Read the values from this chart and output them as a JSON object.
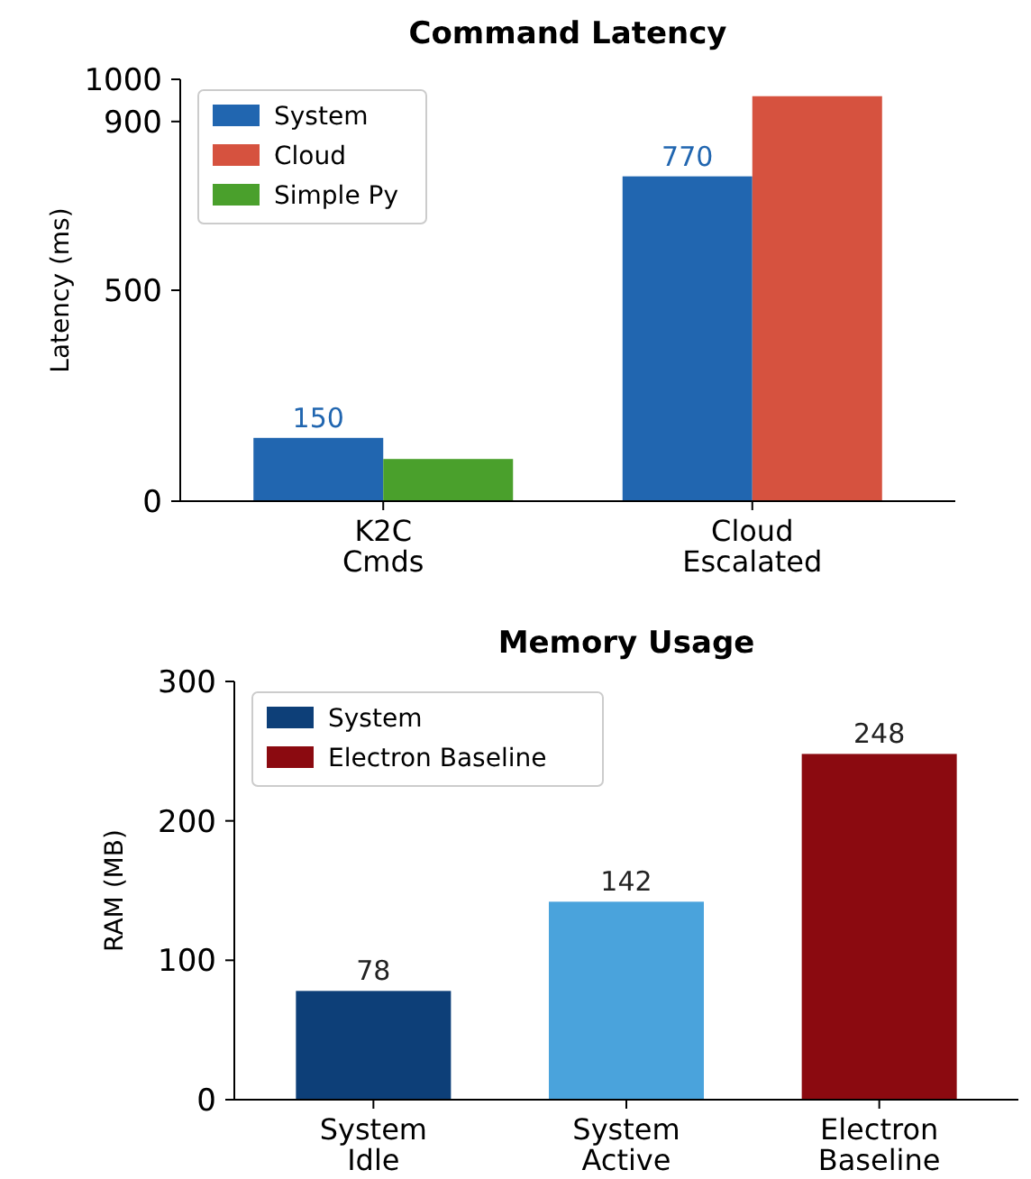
{
  "chart_data": [
    {
      "type": "bar",
      "title": "Command Latency",
      "ylabel": "Latency (ms)",
      "categories": [
        "K2C Cmds",
        "Cloud Escalated"
      ],
      "ylim": [
        0,
        1000
      ],
      "yticks": [
        0,
        500,
        900,
        1000
      ],
      "legend": "top left",
      "series": [
        {
          "name": "System",
          "color": "#2166b0",
          "values": [
            150,
            770
          ],
          "value_labels": [
            "150",
            "770"
          ]
        },
        {
          "name": "Cloud",
          "color": "#d6523f",
          "values": [
            null,
            960
          ]
        },
        {
          "name": "Simple Py",
          "color": "#4aa02c",
          "values": [
            100,
            null
          ]
        }
      ]
    },
    {
      "type": "bar",
      "title": "Memory Usage",
      "ylabel": "RAM (MB)",
      "categories": [
        "System Idle",
        "System Active",
        "Electron Baseline"
      ],
      "ylim": [
        0,
        300
      ],
      "yticks": [
        0,
        100,
        200,
        300
      ],
      "legend": "top left",
      "data_labels": true,
      "series": [
        {
          "name": "System",
          "color": "#0d3f78",
          "colors": [
            "#0d3f78",
            "#4aa3dc",
            null
          ],
          "values": [
            78,
            142,
            null
          ]
        },
        {
          "name": "Electron Baseline",
          "color": "#8b0a10",
          "values": [
            null,
            null,
            248
          ]
        }
      ]
    }
  ]
}
